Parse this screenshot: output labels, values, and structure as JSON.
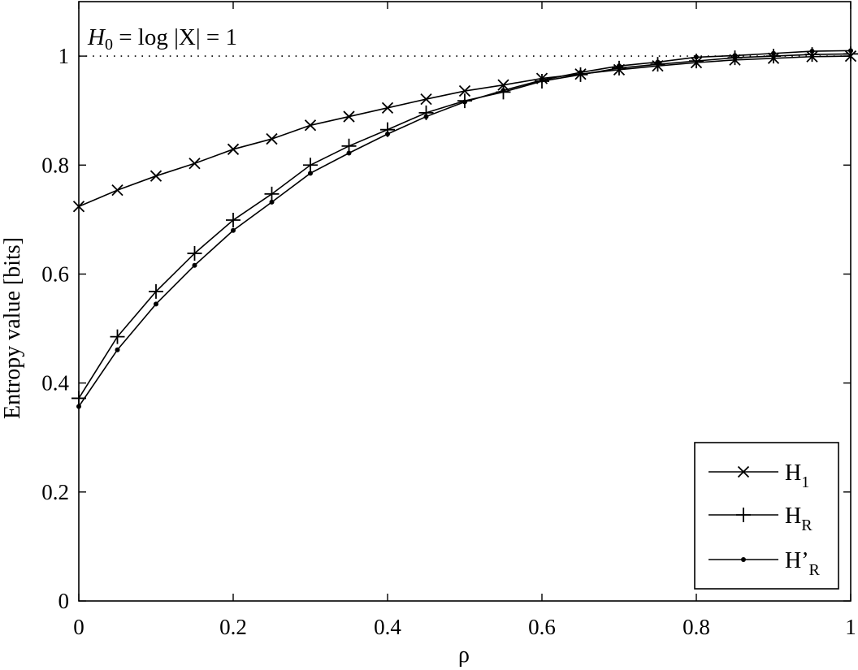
{
  "chart_data": {
    "type": "line",
    "title": "",
    "xlabel": "ρ",
    "ylabel": "Entropy value [bits]",
    "xlim": [
      0,
      1
    ],
    "ylim": [
      0,
      1.1
    ],
    "xticks": [
      0,
      0.2,
      0.4,
      0.6,
      0.8,
      1
    ],
    "xtick_labels": [
      "0",
      "0.2",
      "0.4",
      "0.6",
      "0.8",
      "1"
    ],
    "yticks": [
      0,
      0.2,
      0.4,
      0.6,
      0.8,
      1
    ],
    "ytick_labels": [
      "0",
      "0.2",
      "0.4",
      "0.6",
      "0.8",
      "1"
    ],
    "grid": false,
    "legend_position": "bottom-right",
    "reference_line": {
      "y": 1,
      "style": "dotted"
    },
    "annotation": {
      "main": "H",
      "sub": "0",
      "rest": " = log |X| = 1"
    },
    "x": [
      0,
      0.05,
      0.1,
      0.15,
      0.2,
      0.25,
      0.3,
      0.35,
      0.4,
      0.45,
      0.5,
      0.55,
      0.6,
      0.65,
      0.7,
      0.75,
      0.8,
      0.85,
      0.9,
      0.95,
      1.0
    ],
    "series": [
      {
        "name": "H1",
        "legend_main": "H",
        "legend_sub": "1",
        "marker": "x",
        "values": [
          0.724,
          0.754,
          0.78,
          0.803,
          0.829,
          0.848,
          0.873,
          0.889,
          0.905,
          0.921,
          0.936,
          0.947,
          0.959,
          0.967,
          0.975,
          0.982,
          0.988,
          0.993,
          0.996,
          0.999,
          1.0
        ]
      },
      {
        "name": "HR",
        "legend_main": "H",
        "legend_sub": "R",
        "marker": "plus",
        "values": [
          0.372,
          0.485,
          0.568,
          0.638,
          0.699,
          0.747,
          0.8,
          0.835,
          0.865,
          0.896,
          0.918,
          0.934,
          0.954,
          0.966,
          0.978,
          0.985,
          0.991,
          0.997,
          1.0,
          1.003,
          1.004
        ]
      },
      {
        "name": "H'R",
        "legend_main": "H’",
        "legend_sub": "R",
        "marker": "dot",
        "values": [
          0.357,
          0.461,
          0.545,
          0.616,
          0.68,
          0.732,
          0.785,
          0.822,
          0.857,
          0.889,
          0.916,
          0.937,
          0.956,
          0.97,
          0.982,
          0.989,
          0.998,
          1.001,
          1.005,
          1.009,
          1.01
        ]
      }
    ],
    "colors": {
      "line": "#000000",
      "background": "#ffffff"
    }
  }
}
